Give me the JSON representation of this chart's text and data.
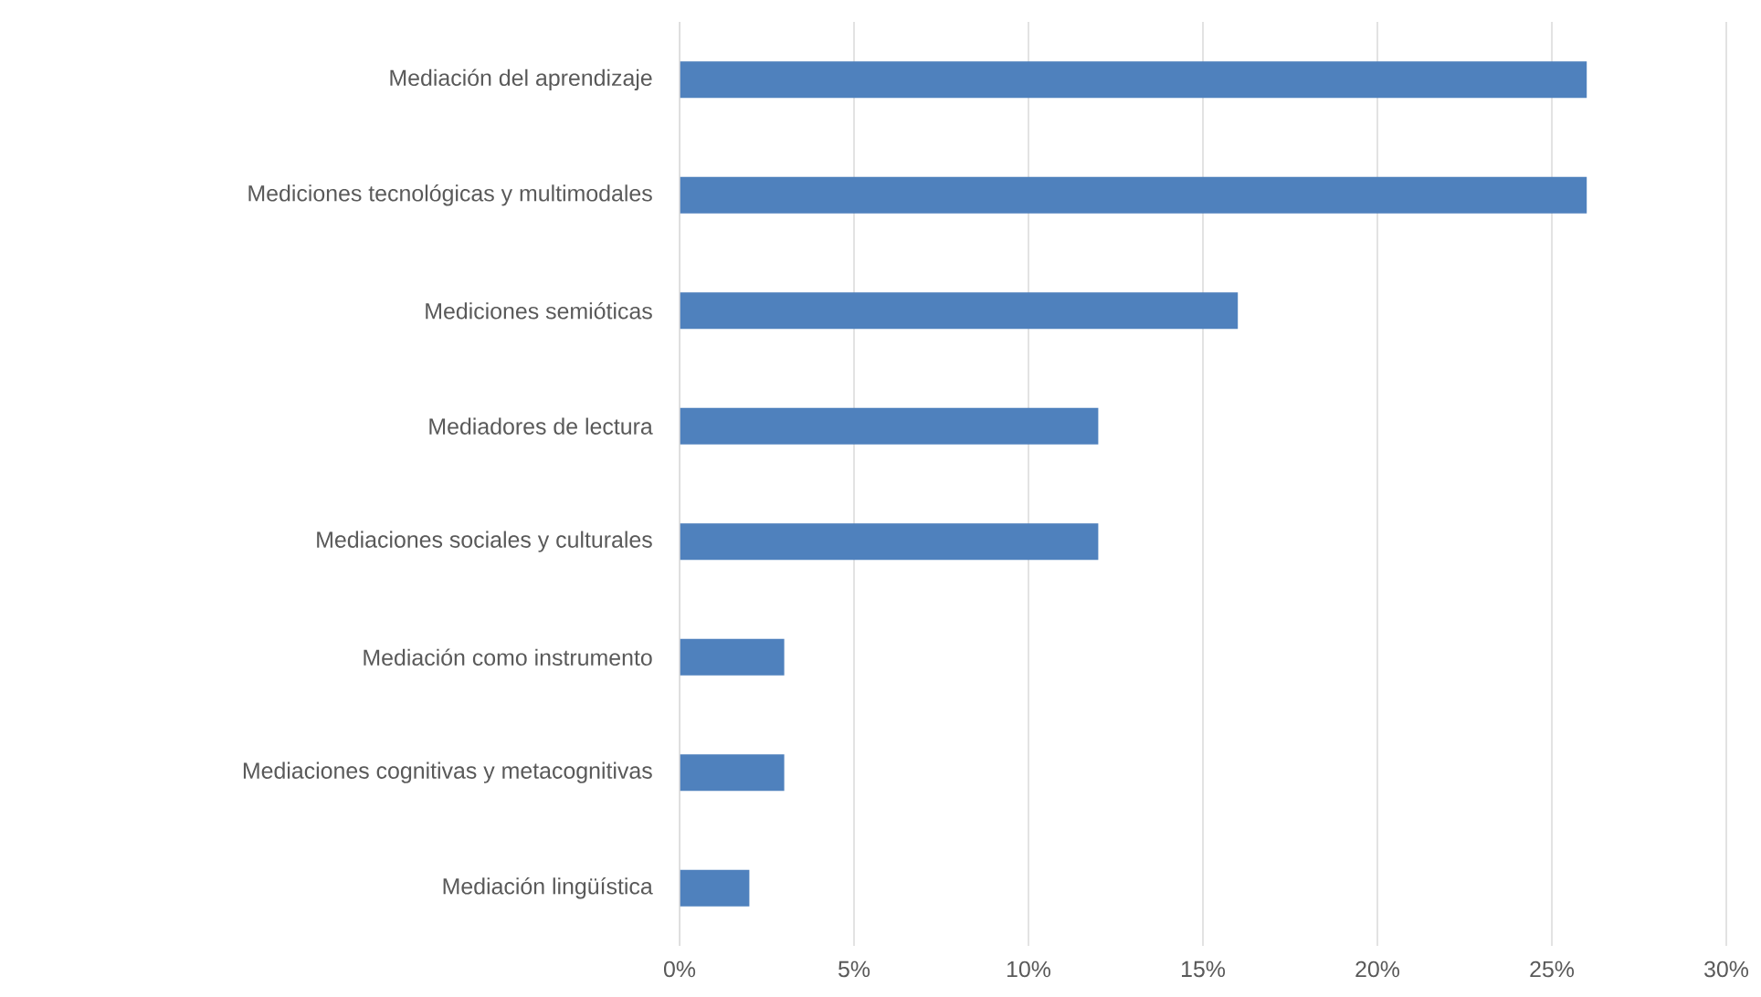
{
  "chart_data": {
    "type": "bar",
    "orientation": "horizontal",
    "categories": [
      "Mediación del aprendizaje",
      "Mediciones tecnológicas y multimodales",
      "Mediciones semióticas",
      "Mediadores de lectura",
      "Mediaciones sociales y culturales",
      "Mediación como instrumento",
      "Mediaciones cognitivas y metacognitivas",
      "Mediación lingüística"
    ],
    "values": [
      26,
      26,
      16,
      12,
      12,
      3,
      3,
      2
    ],
    "color": "#4f81bd",
    "xlim": [
      0,
      30
    ],
    "xticks": [
      {
        "value": 0,
        "label": "0%"
      },
      {
        "value": 5,
        "label": "5%"
      },
      {
        "value": 10,
        "label": "10%"
      },
      {
        "value": 15,
        "label": "15%"
      },
      {
        "value": 20,
        "label": "20%"
      },
      {
        "value": 25,
        "label": "25%"
      },
      {
        "value": 30,
        "label": "30%"
      }
    ],
    "grid": "x"
  }
}
